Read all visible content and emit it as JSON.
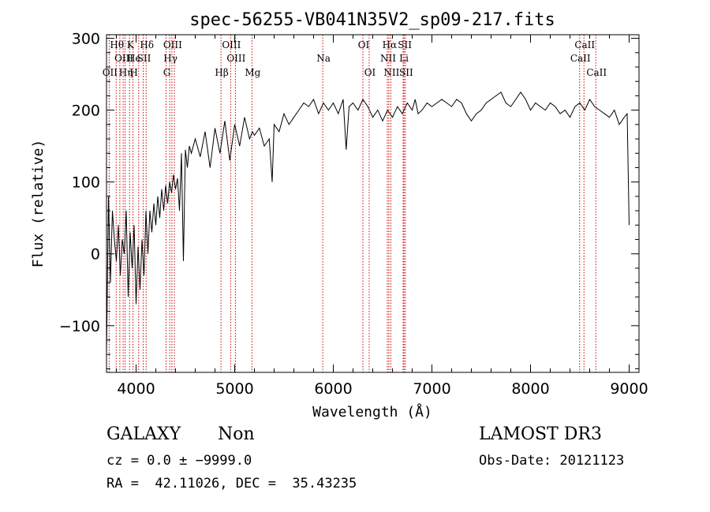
{
  "chart_data": {
    "type": "line",
    "title": "spec-56255-VB041N35V2_sp09-217.fits",
    "xlabel": "Wavelength (Å)",
    "ylabel": "Flux (relative)",
    "xlim": [
      3700,
      9100
    ],
    "ylim": [
      -165,
      305
    ],
    "x_ticks": [
      4000,
      5000,
      6000,
      7000,
      8000,
      9000
    ],
    "y_ticks": [
      -100,
      0,
      100,
      200,
      300
    ],
    "y_tick_labels": [
      "−100",
      "0",
      "100",
      "200",
      "300"
    ],
    "series": [
      {
        "name": "spectrum",
        "x": [
          3700,
          3720,
          3740,
          3760,
          3780,
          3800,
          3820,
          3840,
          3860,
          3880,
          3900,
          3920,
          3940,
          3960,
          3980,
          4000,
          4020,
          4040,
          4060,
          4080,
          4100,
          4120,
          4140,
          4160,
          4180,
          4200,
          4220,
          4240,
          4260,
          4280,
          4300,
          4320,
          4340,
          4360,
          4380,
          4400,
          4420,
          4440,
          4460,
          4480,
          4500,
          4520,
          4540,
          4560,
          4600,
          4650,
          4700,
          4750,
          4800,
          4850,
          4900,
          4950,
          5000,
          5050,
          5100,
          5150,
          5180,
          5200,
          5250,
          5300,
          5350,
          5380,
          5400,
          5450,
          5500,
          5550,
          5600,
          5650,
          5700,
          5750,
          5800,
          5850,
          5900,
          5950,
          6000,
          6050,
          6100,
          6130,
          6160,
          6200,
          6250,
          6300,
          6350,
          6400,
          6450,
          6500,
          6550,
          6600,
          6650,
          6700,
          6750,
          6800,
          6830,
          6860,
          6900,
          6950,
          7000,
          7050,
          7100,
          7150,
          7200,
          7250,
          7300,
          7350,
          7400,
          7450,
          7500,
          7550,
          7600,
          7650,
          7700,
          7750,
          7800,
          7850,
          7900,
          7950,
          8000,
          8050,
          8100,
          8150,
          8200,
          8250,
          8300,
          8350,
          8400,
          8450,
          8500,
          8550,
          8600,
          8650,
          8700,
          8750,
          8800,
          8850,
          8900,
          8950,
          8980,
          9000
        ],
        "values": [
          -140,
          80,
          -40,
          60,
          20,
          -10,
          40,
          -30,
          20,
          0,
          60,
          -60,
          30,
          -20,
          40,
          -70,
          10,
          -50,
          20,
          -30,
          60,
          0,
          60,
          30,
          70,
          40,
          80,
          50,
          90,
          60,
          95,
          70,
          100,
          85,
          110,
          90,
          105,
          60,
          140,
          -10,
          145,
          120,
          150,
          140,
          160,
          135,
          170,
          120,
          175,
          140,
          185,
          130,
          180,
          150,
          190,
          160,
          170,
          165,
          175,
          150,
          160,
          100,
          180,
          170,
          195,
          180,
          190,
          200,
          210,
          205,
          215,
          195,
          210,
          200,
          210,
          195,
          215,
          145,
          205,
          210,
          200,
          215,
          205,
          190,
          200,
          185,
          200,
          190,
          205,
          195,
          210,
          200,
          215,
          195,
          200,
          210,
          205,
          210,
          215,
          210,
          205,
          215,
          210,
          195,
          185,
          195,
          200,
          210,
          215,
          220,
          225,
          210,
          205,
          215,
          225,
          215,
          200,
          210,
          205,
          200,
          210,
          205,
          195,
          200,
          190,
          205,
          210,
          200,
          215,
          205,
          200,
          195,
          190,
          200,
          180,
          190,
          195,
          40
        ]
      }
    ],
    "emission_lines": [
      {
        "label": "OII",
        "x": 3727,
        "row": 3
      },
      {
        "label": "Hθ",
        "x": 3798,
        "row": 1
      },
      {
        "label": "OIII",
        "x": 3869,
        "row": 2
      },
      {
        "label": "Hη",
        "x": 3889,
        "row": 3
      },
      {
        "label": "He",
        "x": 3970,
        "row": 2
      },
      {
        "label": "K",
        "x": 3934,
        "row": 1
      },
      {
        "label": "H",
        "x": 3969,
        "row": 3
      },
      {
        "label": "Hδ",
        "x": 4102,
        "row": 1
      },
      {
        "label": "SII",
        "x": 4072,
        "row": 2
      },
      {
        "label": "OIII",
        "x": 4363,
        "row": 1
      },
      {
        "label": "Hγ",
        "x": 4341,
        "row": 2
      },
      {
        "label": "G",
        "x": 4304,
        "row": 3
      },
      {
        "label": "OIII",
        "x": 4959,
        "row": 1
      },
      {
        "label": "OIII",
        "x": 5007,
        "row": 2
      },
      {
        "label": "Hβ",
        "x": 4861,
        "row": 3
      },
      {
        "label": "Mg",
        "x": 5175,
        "row": 3
      },
      {
        "label": "Na",
        "x": 5893,
        "row": 2
      },
      {
        "label": "OI",
        "x": 6300,
        "row": 1
      },
      {
        "label": "OI",
        "x": 6364,
        "row": 3
      },
      {
        "label": "Hα",
        "x": 6563,
        "row": 1
      },
      {
        "label": "NII",
        "x": 6548,
        "row": 2
      },
      {
        "label": "NII",
        "x": 6583,
        "row": 3
      },
      {
        "label": "SII",
        "x": 6717,
        "row": 1
      },
      {
        "label": "Li",
        "x": 6708,
        "row": 2
      },
      {
        "label": "SII",
        "x": 6731,
        "row": 3
      },
      {
        "label": "CaII",
        "x": 8542,
        "row": 1
      },
      {
        "label": "CaII",
        "x": 8498,
        "row": 2
      },
      {
        "label": "CaII",
        "x": 8662,
        "row": 3
      }
    ],
    "line_marker_x": [
      3727,
      3798,
      3835,
      3869,
      3889,
      3934,
      3969,
      4026,
      4072,
      4102,
      4304,
      4341,
      4363,
      4388,
      4861,
      4959,
      5007,
      5175,
      5893,
      6300,
      6364,
      6548,
      6563,
      6583,
      6708,
      6717,
      6731,
      8498,
      8542,
      8662
    ]
  },
  "info": {
    "class": "GALAXY",
    "subclass": "Non",
    "survey": "LAMOST DR3",
    "cz": "cz = 0.0 ± −9999.0",
    "obs_date": "Obs-Date: 20121123",
    "radec": "RA =  42.11026, DEC =  35.43235"
  }
}
